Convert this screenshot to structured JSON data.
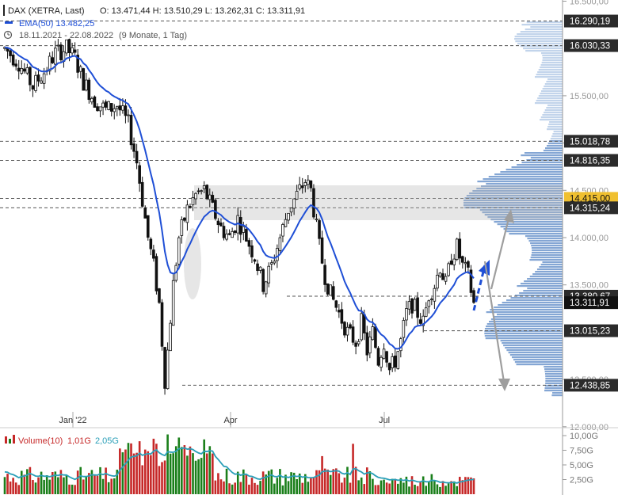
{
  "legend": {
    "instrument": "DAX (XETRA, Last)",
    "ohlc": "O: 13.471,44  H: 13.510,29  L: 13.262,31  C: 13.311,91",
    "ema": "EMA(50)  13.482,25",
    "period": "18.11.2021 - 22.08.2022",
    "period_note": "(9 Monate, 1 Tag)"
  },
  "volume_legend": {
    "name": "Volume(10)",
    "value1": "1,01G",
    "value2": "2,05G"
  },
  "colors": {
    "up": "#1a7f1a",
    "down": "#c62828",
    "ema": "#1f4fd6",
    "volume_avg": "#2a9fb8",
    "profile": "#6f97cc",
    "profile_light": "#b7cde8",
    "highlight_price": "#f0c030",
    "arrow_blue": "#1f4fd6",
    "arrow_gray": "#9e9e9e"
  },
  "chart_data": {
    "type": "candlestick",
    "y_ticks": [
      "16.500,00",
      "15.500,00",
      "15.000,00",
      "14.500,00",
      "14.000,00",
      "13.500,00",
      "12.500,00",
      "12.000,00"
    ],
    "y_tick_values": [
      16500,
      15500,
      15000,
      14500,
      14000,
      13500,
      12500,
      12000
    ],
    "x_ticks": [
      "Jan '22",
      "Apr",
      "Jul"
    ],
    "ylim": [
      12000,
      16550
    ],
    "levels": [
      {
        "label": "16.290,19",
        "value": 16290.19
      },
      {
        "label": "16.030,33",
        "value": 16030.33
      },
      {
        "label": "15.018,78",
        "value": 15018.78
      },
      {
        "label": "14.816,35",
        "value": 14816.35
      },
      {
        "label": "14.415,00",
        "value": 14415.0,
        "highlight": true
      },
      {
        "label": "14.315,24",
        "value": 14315.24
      },
      {
        "label": "13.380,67",
        "value": 13380.67
      },
      {
        "label": "13.311,91",
        "value": 13311.91,
        "current": true
      },
      {
        "label": "13.015,23",
        "value": 13015.23
      },
      {
        "label": "12.438,85",
        "value": 12438.85
      }
    ],
    "price_anchors": [
      [
        0,
        16000
      ],
      [
        5,
        15850
      ],
      [
        10,
        15600
      ],
      [
        14,
        15750
      ],
      [
        18,
        15950
      ],
      [
        22,
        16000
      ],
      [
        25,
        15900
      ],
      [
        28,
        15650
      ],
      [
        32,
        15450
      ],
      [
        36,
        15350
      ],
      [
        40,
        15400
      ],
      [
        44,
        15200
      ],
      [
        47,
        14800
      ],
      [
        49,
        14400
      ],
      [
        51,
        14000
      ],
      [
        53,
        13700
      ],
      [
        55,
        13300
      ],
      [
        56,
        12900
      ],
      [
        57,
        12500
      ],
      [
        58,
        12800
      ],
      [
        60,
        13500
      ],
      [
        62,
        14000
      ],
      [
        65,
        14300
      ],
      [
        68,
        14450
      ],
      [
        71,
        14500
      ],
      [
        74,
        14300
      ],
      [
        77,
        14100
      ],
      [
        80,
        14000
      ],
      [
        83,
        14200
      ],
      [
        86,
        14000
      ],
      [
        89,
        13800
      ],
      [
        92,
        13500
      ],
      [
        95,
        13700
      ],
      [
        98,
        14000
      ],
      [
        101,
        14300
      ],
      [
        104,
        14450
      ],
      [
        107,
        14600
      ],
      [
        109,
        14500
      ],
      [
        110,
        14300
      ],
      [
        112,
        13900
      ],
      [
        114,
        13600
      ],
      [
        116,
        13400
      ],
      [
        119,
        13200
      ],
      [
        122,
        13000
      ],
      [
        125,
        12900
      ],
      [
        127,
        13100
      ],
      [
        129,
        12800
      ],
      [
        131,
        13000
      ],
      [
        133,
        12700
      ],
      [
        135,
        12900
      ],
      [
        137,
        12600
      ],
      [
        139,
        12700
      ],
      [
        141,
        12900
      ],
      [
        143,
        13200
      ],
      [
        145,
        13300
      ],
      [
        147,
        13200
      ],
      [
        149,
        13100
      ],
      [
        151,
        13400
      ],
      [
        153,
        13500
      ],
      [
        155,
        13700
      ],
      [
        157,
        13500
      ],
      [
        159,
        13800
      ],
      [
        161,
        13900
      ],
      [
        163,
        13700
      ],
      [
        165,
        13600
      ],
      [
        167,
        13300
      ]
    ],
    "volume_ticks": [
      "10,00G",
      "7,50G",
      "5,00G",
      "2,50G"
    ],
    "volume_tick_values": [
      10,
      7.5,
      5,
      2.5
    ]
  }
}
